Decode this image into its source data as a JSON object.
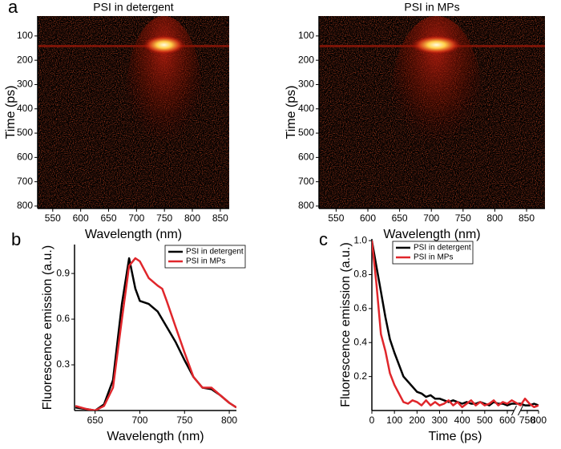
{
  "chart_data": [
    {
      "type": "heatmap",
      "panel_label": "a",
      "title": "PSI in detergent",
      "x_label": "Wavelength (nm)",
      "y_label": "Time (ps)",
      "xlim": [
        523,
        866
      ],
      "xticks": [
        550,
        600,
        650,
        700,
        750,
        800,
        850
      ],
      "ylim": [
        18,
        810
      ],
      "y_inverted": true,
      "yticks": [
        100,
        200,
        300,
        400,
        500,
        600,
        700,
        800
      ]
    },
    {
      "type": "heatmap",
      "title": "PSI in MPs",
      "x_label": "Wavelength (nm)",
      "y_label": "Time (ps)",
      "xlim": [
        523,
        879
      ],
      "xticks": [
        550,
        600,
        650,
        700,
        750,
        800,
        850
      ],
      "ylim": [
        18,
        810
      ],
      "y_inverted": true,
      "yticks": [
        100,
        200,
        300,
        400,
        500,
        600,
        700,
        800
      ]
    },
    {
      "type": "line",
      "panel_label": "b",
      "x_label": "Wavelength (nm)",
      "y_label": "Fluorescence emission (a.u.)",
      "xlim": [
        627,
        808
      ],
      "xticks": [
        650,
        700,
        750,
        800
      ],
      "ylim": [
        0,
        1.09
      ],
      "yticks": [
        0.3,
        0.6,
        0.9
      ],
      "x": [
        628,
        640,
        650,
        660,
        670,
        680,
        688,
        695,
        700,
        710,
        720,
        725,
        730,
        740,
        750,
        760,
        770,
        780,
        790,
        800,
        808
      ],
      "series": [
        {
          "name": "PSI in detergent",
          "color": "#000000",
          "values": [
            0.02,
            0.01,
            0.0,
            0.04,
            0.2,
            0.7,
            1.0,
            0.8,
            0.72,
            0.7,
            0.65,
            0.6,
            0.55,
            0.45,
            0.33,
            0.22,
            0.15,
            0.14,
            0.1,
            0.05,
            0.02
          ]
        },
        {
          "name": "PSI in MPs",
          "color": "#e0262b",
          "values": [
            0.03,
            0.01,
            0.0,
            0.03,
            0.15,
            0.6,
            0.95,
            1.0,
            0.98,
            0.87,
            0.82,
            0.8,
            0.72,
            0.55,
            0.38,
            0.22,
            0.15,
            0.15,
            0.1,
            0.05,
            0.02
          ]
        }
      ]
    },
    {
      "type": "line",
      "panel_label": "c",
      "x_label": "Time (ps)",
      "y_label": "Fluorescence emission (a.u.)",
      "xlim": [
        0,
        800
      ],
      "x_break": [
        630,
        720
      ],
      "xticks": [
        0,
        100,
        200,
        300,
        400,
        500,
        600,
        750,
        800
      ],
      "ylim": [
        0,
        1.01
      ],
      "yticks": [
        0.2,
        0.4,
        0.6,
        0.8,
        {
          "value": 1,
          "label": "1.0"
        }
      ],
      "x": [
        0,
        20,
        40,
        60,
        80,
        100,
        120,
        140,
        160,
        180,
        200,
        220,
        240,
        260,
        280,
        300,
        320,
        340,
        360,
        380,
        400,
        420,
        440,
        460,
        480,
        500,
        520,
        540,
        560,
        580,
        600,
        620,
        720,
        740,
        760,
        780,
        800
      ],
      "series": [
        {
          "name": "PSI in detergent",
          "color": "#000000",
          "values": [
            1.0,
            0.85,
            0.7,
            0.55,
            0.42,
            0.34,
            0.27,
            0.2,
            0.17,
            0.14,
            0.11,
            0.1,
            0.08,
            0.09,
            0.07,
            0.07,
            0.06,
            0.05,
            0.06,
            0.05,
            0.04,
            0.05,
            0.04,
            0.04,
            0.05,
            0.04,
            0.03,
            0.05,
            0.04,
            0.04,
            0.03,
            0.04,
            0.04,
            0.03,
            0.03,
            0.04,
            0.03
          ]
        },
        {
          "name": "PSI in MPs",
          "color": "#e0262b",
          "values": [
            1.0,
            0.75,
            0.45,
            0.35,
            0.22,
            0.15,
            0.1,
            0.05,
            0.04,
            0.06,
            0.05,
            0.03,
            0.06,
            0.03,
            0.05,
            0.03,
            0.04,
            0.06,
            0.03,
            0.05,
            0.02,
            0.04,
            0.06,
            0.03,
            0.05,
            0.03,
            0.04,
            0.06,
            0.03,
            0.05,
            0.04,
            0.06,
            0.03,
            0.07,
            0.04,
            0.02,
            0.03
          ]
        }
      ]
    }
  ]
}
